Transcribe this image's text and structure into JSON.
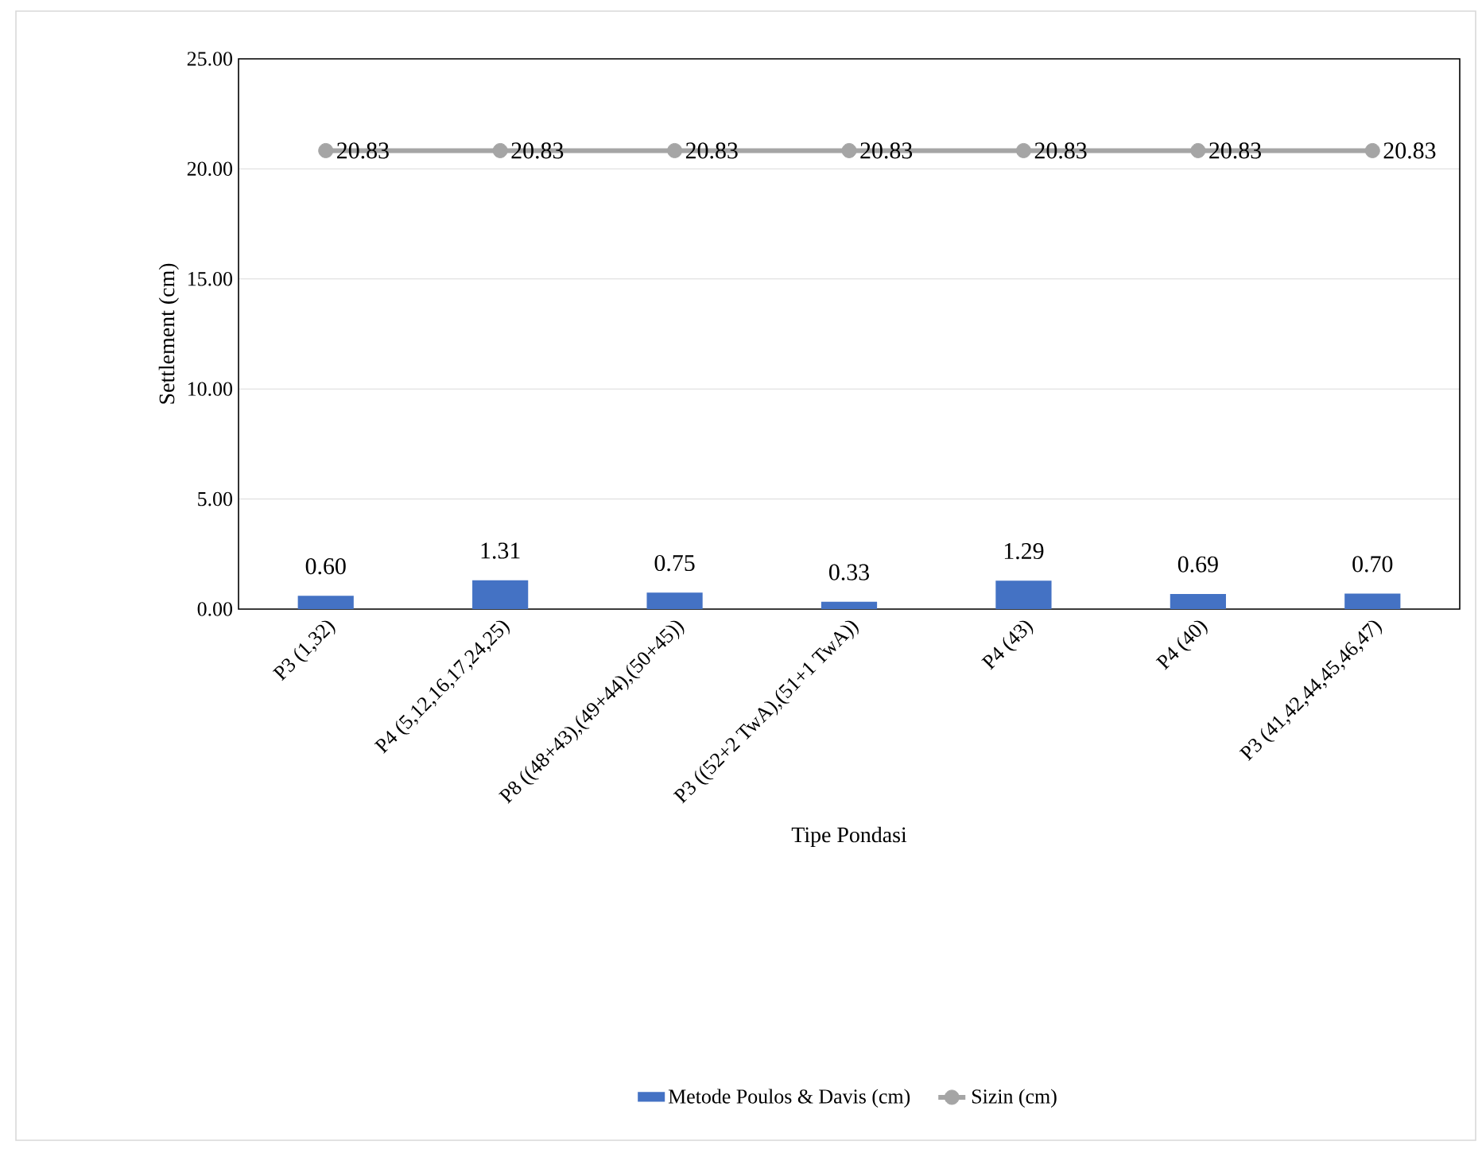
{
  "chart_data": {
    "type": "bar",
    "xlabel": "Tipe Pondasi",
    "ylabel": "Settlement (cm)",
    "categories": [
      "P3 (1,32)",
      "P4 (5,12,16,17,24,25)",
      "P8 ((48+43),(49+44),(50+45))",
      "P3 ((52+2 TwA),(51+1 TwA))",
      "P4 (43)",
      "P4 (40)",
      "P3 (41,42,44,45,46,47)"
    ],
    "series": [
      {
        "name": "Metode Poulos & Davis (cm)",
        "color": "#4472c4",
        "values": [
          0.6,
          1.31,
          0.75,
          0.33,
          1.29,
          0.69,
          0.7
        ],
        "value_labels": [
          "0.60",
          "1.31",
          "0.75",
          "0.33",
          "1.29",
          "0.69",
          "0.70"
        ]
      },
      {
        "name": "Sizin (cm)",
        "type": "line",
        "color": "#a5a5a5",
        "marker": "circle",
        "values": [
          20.83,
          20.83,
          20.83,
          20.83,
          20.83,
          20.83,
          20.83
        ],
        "value_labels": [
          "20.83",
          "20.83",
          "20.83",
          "20.83",
          "20.83",
          "20.83",
          "20.83"
        ]
      }
    ],
    "ylim": [
      0,
      25
    ],
    "yticks": [
      {
        "value": 0,
        "label": "0.00"
      },
      {
        "value": 5,
        "label": "5.00"
      },
      {
        "value": 10,
        "label": "10.00"
      },
      {
        "value": 15,
        "label": "15.00"
      },
      {
        "value": 20,
        "label": "20.00"
      },
      {
        "value": 25,
        "label": "25.00"
      }
    ],
    "grid": "y",
    "legend": "bottom"
  }
}
